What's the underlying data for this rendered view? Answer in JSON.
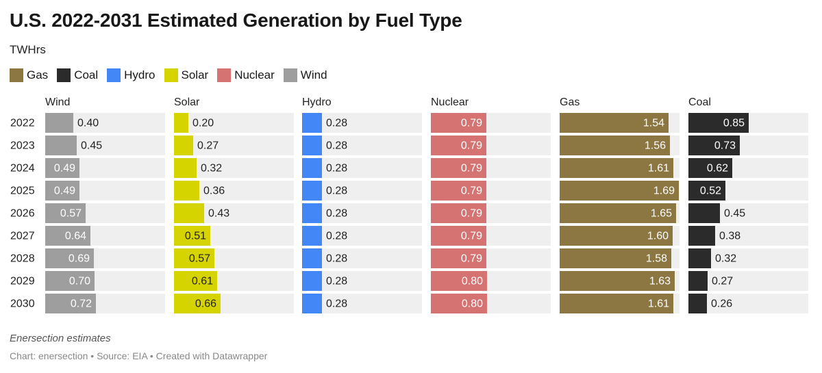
{
  "title": "U.S. 2022-2031 Estimated Generation by Fuel Type",
  "subtitle": "TWHrs",
  "legend": [
    {
      "label": "Gas",
      "color": "#8c7743"
    },
    {
      "label": "Coal",
      "color": "#2b2b2b"
    },
    {
      "label": "Hydro",
      "color": "#4287f5"
    },
    {
      "label": "Solar",
      "color": "#d6d400"
    },
    {
      "label": "Nuclear",
      "color": "#d57373"
    },
    {
      "label": "Wind",
      "color": "#9e9e9e"
    }
  ],
  "footer": {
    "note": "Enersection estimates",
    "source": "Chart: enersection • Source: EIA • Created with Datawrapper"
  },
  "chart_data": {
    "type": "bar",
    "orientation": "horizontal",
    "layout": "small-multiples",
    "unit": "TWHrs",
    "categories": [
      "2022",
      "2023",
      "2024",
      "2025",
      "2026",
      "2027",
      "2028",
      "2029",
      "2030"
    ],
    "xlim": [
      0,
      1.7
    ],
    "series": [
      {
        "name": "Wind",
        "color": "#9e9e9e",
        "values": [
          0.4,
          0.45,
          0.49,
          0.49,
          0.57,
          0.64,
          0.69,
          0.7,
          0.72
        ]
      },
      {
        "name": "Solar",
        "color": "#d6d400",
        "values": [
          0.2,
          0.27,
          0.32,
          0.36,
          0.43,
          0.51,
          0.57,
          0.61,
          0.66
        ]
      },
      {
        "name": "Hydro",
        "color": "#4287f5",
        "values": [
          0.28,
          0.28,
          0.28,
          0.28,
          0.28,
          0.28,
          0.28,
          0.28,
          0.28
        ]
      },
      {
        "name": "Nuclear",
        "color": "#d57373",
        "values": [
          0.79,
          0.79,
          0.79,
          0.79,
          0.79,
          0.79,
          0.79,
          0.8,
          0.8
        ]
      },
      {
        "name": "Gas",
        "color": "#8c7743",
        "values": [
          1.54,
          1.56,
          1.61,
          1.69,
          1.65,
          1.6,
          1.58,
          1.63,
          1.61
        ]
      },
      {
        "name": "Coal",
        "color": "#2b2b2b",
        "values": [
          0.85,
          0.73,
          0.62,
          0.52,
          0.45,
          0.38,
          0.32,
          0.27,
          0.26
        ]
      }
    ]
  }
}
